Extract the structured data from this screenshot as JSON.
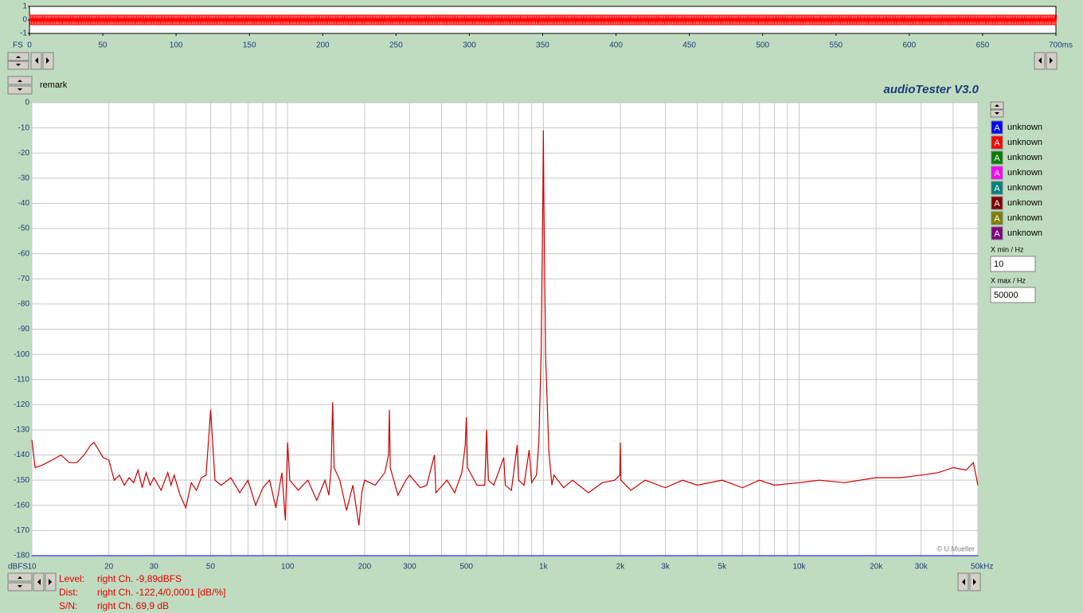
{
  "chart_data": [
    {
      "type": "area",
      "ylabel": "FS",
      "x": [
        0,
        700
      ],
      "series": [
        {
          "color": "#ff0000",
          "values": [
            0.35,
            0.35
          ]
        },
        {
          "color": "#ff0000",
          "values": [
            -0.35,
            -0.35
          ]
        }
      ],
      "xlim": [
        0,
        700
      ],
      "xticks": [
        0,
        50,
        100,
        150,
        200,
        250,
        300,
        350,
        400,
        450,
        500,
        550,
        600,
        650,
        {
          "value": 700,
          "label": "700ms"
        }
      ],
      "ylim": [
        -1,
        1
      ],
      "yticks": [
        1,
        0,
        -1
      ]
    },
    {
      "type": "line",
      "ylabel": "dBFS",
      "log_x": true,
      "grid": true,
      "x": [
        10,
        10.3,
        11,
        12,
        13,
        14,
        15,
        16,
        17,
        17.5,
        18,
        19,
        20,
        21,
        22,
        23,
        24,
        25,
        26,
        27,
        28,
        29,
        30,
        32,
        34,
        35,
        36,
        38,
        40,
        42,
        44,
        46,
        48,
        49,
        50,
        51,
        52,
        55,
        60,
        65,
        70,
        75,
        80,
        85,
        90,
        95,
        98,
        100,
        102,
        110,
        120,
        130,
        140,
        145,
        148,
        150,
        152,
        160,
        170,
        180,
        190,
        195,
        200,
        220,
        240,
        248,
        250,
        252,
        270,
        290,
        300,
        330,
        350,
        375,
        380,
        420,
        450,
        480,
        495,
        500,
        505,
        550,
        590,
        600,
        610,
        640,
        700,
        710,
        750,
        790,
        800,
        840,
        880,
        900,
        940,
        960,
        980,
        995,
        1000,
        1005,
        1020,
        1050,
        1080,
        1100,
        1200,
        1300,
        1500,
        1700,
        1900,
        1990,
        2000,
        2010,
        2200,
        2500,
        3000,
        3500,
        4000,
        5000,
        6000,
        7000,
        8000,
        10000,
        12000,
        15000,
        20000,
        25000,
        30000,
        35000,
        40000,
        45000,
        48000,
        50000
      ],
      "series": [
        {
          "color": "#cc0000",
          "values": [
            -134,
            -145,
            -144,
            -142,
            -140,
            -143,
            -143,
            -140,
            -136,
            -135,
            -137,
            -141,
            -142,
            -150,
            -148,
            -152,
            -149,
            -151,
            -146,
            -153,
            -147,
            -152,
            -149,
            -154,
            -147,
            -152,
            -148,
            -156,
            -161,
            -151,
            -154,
            -149,
            -148,
            -135,
            -122,
            -136,
            -150,
            -152,
            -149,
            -155,
            -150,
            -160,
            -153,
            -150,
            -161,
            -147,
            -166,
            -135,
            -150,
            -154,
            -150,
            -158,
            -150,
            -156,
            -145,
            -119,
            -145,
            -150,
            -162,
            -152,
            -168,
            -155,
            -150,
            -152,
            -147,
            -140,
            -122,
            -145,
            -156,
            -150,
            -148,
            -153,
            -152,
            -140,
            -155,
            -150,
            -155,
            -147,
            -136,
            -125,
            -145,
            -152,
            -152,
            -130,
            -150,
            -152,
            -141,
            -152,
            -154,
            -136,
            -150,
            -152,
            -138,
            -151,
            -148,
            -135,
            -100,
            -40,
            -11,
            -40,
            -100,
            -138,
            -152,
            -148,
            -153,
            -150,
            -155,
            -151,
            -150,
            -148,
            -135,
            -150,
            -154,
            -150,
            -153,
            -150,
            -152,
            -150,
            -153,
            -150,
            -152,
            -151,
            -150,
            -151,
            -149,
            -149,
            -148,
            -147,
            -145,
            -146,
            -143,
            -152
          ]
        }
      ],
      "xlim": [
        10,
        50000
      ],
      "xticks": [
        10,
        20,
        30,
        50,
        100,
        200,
        300,
        500,
        {
          "value": 1000,
          "label": "1k"
        },
        {
          "value": 2000,
          "label": "2k"
        },
        {
          "value": 3000,
          "label": "3k"
        },
        {
          "value": 5000,
          "label": "5k"
        },
        {
          "value": 10000,
          "label": "10k"
        },
        {
          "value": 20000,
          "label": "20k"
        },
        {
          "value": 30000,
          "label": "30k"
        },
        {
          "value": 50000,
          "label": "50kHz"
        }
      ],
      "xgrid": [
        40,
        60,
        70,
        80,
        90,
        400,
        600,
        700,
        800,
        900,
        4000,
        6000,
        7000,
        8000,
        9000,
        40000
      ],
      "ylim": [
        -180,
        0
      ],
      "yticks": [
        0,
        -10,
        -20,
        -30,
        -40,
        -50,
        -60,
        -70,
        -80,
        -90,
        -100,
        -110,
        -120,
        -130,
        -140,
        -150,
        -160,
        -170,
        -180
      ]
    }
  ],
  "ui": {
    "remark": "remark",
    "app_title": "audioTester  V3.0",
    "copyright": "© U.Mueller",
    "legend": [
      {
        "icon": "A",
        "label": "unknown",
        "color": "#0000ff"
      },
      {
        "icon": "A",
        "label": "unknown",
        "color": "#ff0000"
      },
      {
        "icon": "A",
        "label": "unknown",
        "color": "#008000"
      },
      {
        "icon": "A",
        "label": "unknown",
        "color": "#ff00ff"
      },
      {
        "icon": "A",
        "label": "unknown",
        "color": "#008080"
      },
      {
        "icon": "A",
        "label": "unknown",
        "color": "#800000"
      },
      {
        "icon": "A",
        "label": "unknown",
        "color": "#808000"
      },
      {
        "icon": "A",
        "label": "unknown",
        "color": "#800080"
      }
    ],
    "x_min_label": "X min / Hz",
    "x_min": "10",
    "x_max_label": "X max / Hz",
    "x_max": "50000",
    "status": [
      {
        "label": "Level:",
        "text": "right Ch. -9,89dBFS"
      },
      {
        "label": "Dist:",
        "text": "right Ch. -122,4/0,0001 [dB/%]"
      },
      {
        "label": "S/N:",
        "text": "right Ch. 69,9 dB"
      }
    ]
  }
}
